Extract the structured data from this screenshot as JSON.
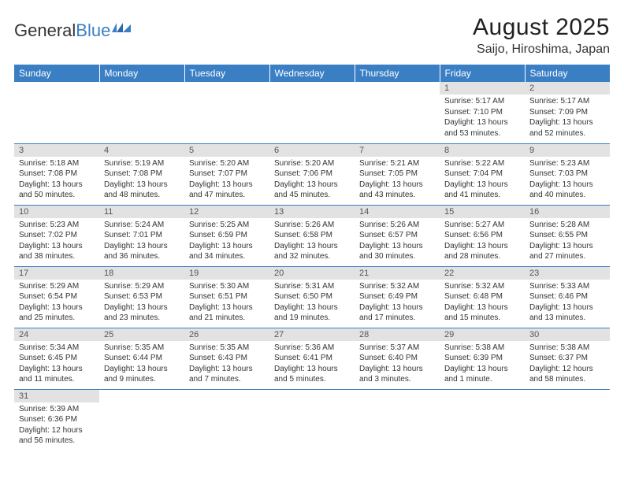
{
  "logo": {
    "word1": "General",
    "word2": "Blue"
  },
  "title": "August 2025",
  "location": "Saijo, Hiroshima, Japan",
  "colors": {
    "header_bg": "#3a7fc4",
    "header_text": "#ffffff",
    "daynum_bg": "#e2e2e2",
    "week_divider": "#3a7fc4",
    "text": "#333333",
    "background": "#ffffff"
  },
  "day_headers": [
    "Sunday",
    "Monday",
    "Tuesday",
    "Wednesday",
    "Thursday",
    "Friday",
    "Saturday"
  ],
  "weeks": [
    [
      null,
      null,
      null,
      null,
      null,
      {
        "n": "1",
        "sunrise": "Sunrise: 5:17 AM",
        "sunset": "Sunset: 7:10 PM",
        "daylight": "Daylight: 13 hours and 53 minutes."
      },
      {
        "n": "2",
        "sunrise": "Sunrise: 5:17 AM",
        "sunset": "Sunset: 7:09 PM",
        "daylight": "Daylight: 13 hours and 52 minutes."
      }
    ],
    [
      {
        "n": "3",
        "sunrise": "Sunrise: 5:18 AM",
        "sunset": "Sunset: 7:08 PM",
        "daylight": "Daylight: 13 hours and 50 minutes."
      },
      {
        "n": "4",
        "sunrise": "Sunrise: 5:19 AM",
        "sunset": "Sunset: 7:08 PM",
        "daylight": "Daylight: 13 hours and 48 minutes."
      },
      {
        "n": "5",
        "sunrise": "Sunrise: 5:20 AM",
        "sunset": "Sunset: 7:07 PM",
        "daylight": "Daylight: 13 hours and 47 minutes."
      },
      {
        "n": "6",
        "sunrise": "Sunrise: 5:20 AM",
        "sunset": "Sunset: 7:06 PM",
        "daylight": "Daylight: 13 hours and 45 minutes."
      },
      {
        "n": "7",
        "sunrise": "Sunrise: 5:21 AM",
        "sunset": "Sunset: 7:05 PM",
        "daylight": "Daylight: 13 hours and 43 minutes."
      },
      {
        "n": "8",
        "sunrise": "Sunrise: 5:22 AM",
        "sunset": "Sunset: 7:04 PM",
        "daylight": "Daylight: 13 hours and 41 minutes."
      },
      {
        "n": "9",
        "sunrise": "Sunrise: 5:23 AM",
        "sunset": "Sunset: 7:03 PM",
        "daylight": "Daylight: 13 hours and 40 minutes."
      }
    ],
    [
      {
        "n": "10",
        "sunrise": "Sunrise: 5:23 AM",
        "sunset": "Sunset: 7:02 PM",
        "daylight": "Daylight: 13 hours and 38 minutes."
      },
      {
        "n": "11",
        "sunrise": "Sunrise: 5:24 AM",
        "sunset": "Sunset: 7:01 PM",
        "daylight": "Daylight: 13 hours and 36 minutes."
      },
      {
        "n": "12",
        "sunrise": "Sunrise: 5:25 AM",
        "sunset": "Sunset: 6:59 PM",
        "daylight": "Daylight: 13 hours and 34 minutes."
      },
      {
        "n": "13",
        "sunrise": "Sunrise: 5:26 AM",
        "sunset": "Sunset: 6:58 PM",
        "daylight": "Daylight: 13 hours and 32 minutes."
      },
      {
        "n": "14",
        "sunrise": "Sunrise: 5:26 AM",
        "sunset": "Sunset: 6:57 PM",
        "daylight": "Daylight: 13 hours and 30 minutes."
      },
      {
        "n": "15",
        "sunrise": "Sunrise: 5:27 AM",
        "sunset": "Sunset: 6:56 PM",
        "daylight": "Daylight: 13 hours and 28 minutes."
      },
      {
        "n": "16",
        "sunrise": "Sunrise: 5:28 AM",
        "sunset": "Sunset: 6:55 PM",
        "daylight": "Daylight: 13 hours and 27 minutes."
      }
    ],
    [
      {
        "n": "17",
        "sunrise": "Sunrise: 5:29 AM",
        "sunset": "Sunset: 6:54 PM",
        "daylight": "Daylight: 13 hours and 25 minutes."
      },
      {
        "n": "18",
        "sunrise": "Sunrise: 5:29 AM",
        "sunset": "Sunset: 6:53 PM",
        "daylight": "Daylight: 13 hours and 23 minutes."
      },
      {
        "n": "19",
        "sunrise": "Sunrise: 5:30 AM",
        "sunset": "Sunset: 6:51 PM",
        "daylight": "Daylight: 13 hours and 21 minutes."
      },
      {
        "n": "20",
        "sunrise": "Sunrise: 5:31 AM",
        "sunset": "Sunset: 6:50 PM",
        "daylight": "Daylight: 13 hours and 19 minutes."
      },
      {
        "n": "21",
        "sunrise": "Sunrise: 5:32 AM",
        "sunset": "Sunset: 6:49 PM",
        "daylight": "Daylight: 13 hours and 17 minutes."
      },
      {
        "n": "22",
        "sunrise": "Sunrise: 5:32 AM",
        "sunset": "Sunset: 6:48 PM",
        "daylight": "Daylight: 13 hours and 15 minutes."
      },
      {
        "n": "23",
        "sunrise": "Sunrise: 5:33 AM",
        "sunset": "Sunset: 6:46 PM",
        "daylight": "Daylight: 13 hours and 13 minutes."
      }
    ],
    [
      {
        "n": "24",
        "sunrise": "Sunrise: 5:34 AM",
        "sunset": "Sunset: 6:45 PM",
        "daylight": "Daylight: 13 hours and 11 minutes."
      },
      {
        "n": "25",
        "sunrise": "Sunrise: 5:35 AM",
        "sunset": "Sunset: 6:44 PM",
        "daylight": "Daylight: 13 hours and 9 minutes."
      },
      {
        "n": "26",
        "sunrise": "Sunrise: 5:35 AM",
        "sunset": "Sunset: 6:43 PM",
        "daylight": "Daylight: 13 hours and 7 minutes."
      },
      {
        "n": "27",
        "sunrise": "Sunrise: 5:36 AM",
        "sunset": "Sunset: 6:41 PM",
        "daylight": "Daylight: 13 hours and 5 minutes."
      },
      {
        "n": "28",
        "sunrise": "Sunrise: 5:37 AM",
        "sunset": "Sunset: 6:40 PM",
        "daylight": "Daylight: 13 hours and 3 minutes."
      },
      {
        "n": "29",
        "sunrise": "Sunrise: 5:38 AM",
        "sunset": "Sunset: 6:39 PM",
        "daylight": "Daylight: 13 hours and 1 minute."
      },
      {
        "n": "30",
        "sunrise": "Sunrise: 5:38 AM",
        "sunset": "Sunset: 6:37 PM",
        "daylight": "Daylight: 12 hours and 58 minutes."
      }
    ],
    [
      {
        "n": "31",
        "sunrise": "Sunrise: 5:39 AM",
        "sunset": "Sunset: 6:36 PM",
        "daylight": "Daylight: 12 hours and 56 minutes."
      },
      null,
      null,
      null,
      null,
      null,
      null
    ]
  ]
}
